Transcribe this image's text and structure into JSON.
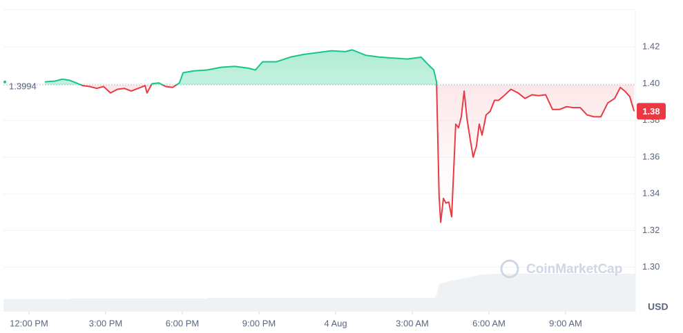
{
  "chart_data": {
    "type": "line",
    "unit_label": "USD",
    "watermark": "CoinMarketCap",
    "baseline": 1.3994,
    "baseline_label": "1.3994",
    "current_price": 1.38,
    "xlim": [
      -1,
      23.73
    ],
    "xticks": [
      {
        "value": 0,
        "label": "12:00 PM"
      },
      {
        "value": 3,
        "label": "3:00 PM"
      },
      {
        "value": 6,
        "label": "6:00 PM"
      },
      {
        "value": 9,
        "label": "9:00 PM"
      },
      {
        "value": 12,
        "label": "4 Aug"
      },
      {
        "value": 15,
        "label": "3:00 AM"
      },
      {
        "value": 18,
        "label": "6:00 AM"
      },
      {
        "value": 21,
        "label": "9:00 AM"
      }
    ],
    "ylim": [
      1.2758,
      1.4404
    ],
    "yticks": [
      {
        "value": 1.3,
        "label": "1.30"
      },
      {
        "value": 1.32,
        "label": "1.32"
      },
      {
        "value": 1.34,
        "label": "1.34"
      },
      {
        "value": 1.36,
        "label": "1.36"
      },
      {
        "value": 1.38,
        "label": "1.38"
      },
      {
        "value": 1.4,
        "label": "1.40"
      },
      {
        "value": 1.42,
        "label": "1.42"
      }
    ],
    "grid": true,
    "up_color": "#16c784",
    "down_color": "#ea3943",
    "x": [
      0.62,
      1.03,
      1.3,
      1.57,
      1.84,
      2.11,
      2.38,
      2.65,
      2.92,
      3.19,
      3.46,
      3.73,
      4.0,
      4.27,
      4.54,
      4.62,
      4.81,
      5.08,
      5.35,
      5.62,
      5.89,
      6.03,
      6.43,
      6.97,
      7.51,
      8.05,
      8.59,
      8.86,
      9.14,
      9.68,
      10.22,
      10.76,
      11.3,
      11.84,
      12.38,
      12.65,
      13.19,
      13.73,
      14.27,
      14.81,
      15.35,
      15.62,
      15.84,
      15.95,
      16.05,
      16.11,
      16.22,
      16.32,
      16.43,
      16.54,
      16.7,
      16.81,
      16.92,
      17.03,
      17.14,
      17.24,
      17.38,
      17.51,
      17.62,
      17.73,
      17.89,
      18.05,
      18.22,
      18.38,
      18.59,
      18.86,
      19.14,
      19.41,
      19.68,
      19.95,
      20.22,
      20.49,
      20.76,
      21.03,
      21.3,
      21.57,
      21.84,
      22.11,
      22.38,
      22.65,
      22.92,
      23.14,
      23.32,
      23.51,
      23.68
    ],
    "values": [
      1.401,
      1.4015,
      1.4025,
      1.402,
      1.4005,
      1.399,
      1.3985,
      1.3975,
      1.3985,
      1.395,
      1.397,
      1.3975,
      1.396,
      1.3975,
      1.399,
      1.395,
      1.4,
      1.4005,
      1.3985,
      1.398,
      1.4005,
      1.406,
      1.407,
      1.4075,
      1.409,
      1.4095,
      1.4085,
      1.4075,
      1.412,
      1.412,
      1.4145,
      1.416,
      1.417,
      1.418,
      1.4175,
      1.4185,
      1.4155,
      1.4145,
      1.414,
      1.4135,
      1.4145,
      1.4105,
      1.4075,
      1.401,
      1.339,
      1.3245,
      1.3375,
      1.335,
      1.3355,
      1.3275,
      1.378,
      1.376,
      1.382,
      1.396,
      1.381,
      1.372,
      1.36,
      1.366,
      1.378,
      1.372,
      1.383,
      1.385,
      1.391,
      1.391,
      1.3935,
      1.397,
      1.395,
      1.392,
      1.394,
      1.3935,
      1.394,
      1.386,
      1.386,
      1.3875,
      1.387,
      1.387,
      1.383,
      1.382,
      1.382,
      1.3895,
      1.392,
      1.398,
      1.396,
      1.393,
      1.385
    ]
  }
}
